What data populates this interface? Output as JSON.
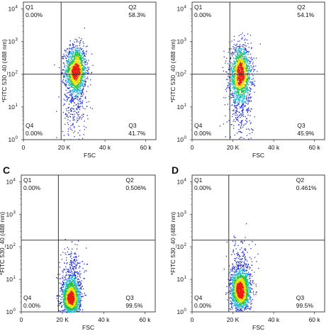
{
  "colors": {
    "density_low": "#1d2bd8",
    "density_mid_low": "#16b8d6",
    "density_mid": "#22c040",
    "density_mid_high": "#e8e000",
    "density_high": "#e81c10",
    "frame": "#444444",
    "gate_line": "#222222"
  },
  "chart_data": [
    {
      "type": "scatter",
      "panel_letter": "",
      "xlabel": "FSC",
      "ylabel": "*FITC 530_40 (488 nm)",
      "x_scale": "linear",
      "y_scale": "log",
      "xlim": [
        0,
        65000
      ],
      "ylim": [
        1,
        16000
      ],
      "x_ticks": [
        0,
        20000,
        40000,
        60000
      ],
      "x_tick_labels": [
        "0",
        "20 K",
        "40 k",
        "60 k"
      ],
      "y_ticks": [
        1,
        10,
        100,
        1000,
        10000
      ],
      "y_tick_labels": [
        "10^0",
        "10^1",
        "10^2",
        "10^3",
        "10^4"
      ],
      "gate_x": 18500,
      "gate_y": 100,
      "quadrants": [
        {
          "name": "Q1",
          "value": "0.00%"
        },
        {
          "name": "Q2",
          "value": "58.3%"
        },
        {
          "name": "Q3",
          "value": "41.7%"
        },
        {
          "name": "Q4",
          "value": "0.00%"
        }
      ],
      "populations": [
        {
          "x_center": 25500,
          "x_sd": 2600,
          "log_y_center": 2.12,
          "log_y_sd": 0.38,
          "count": 1500
        },
        {
          "x_center": 25000,
          "x_sd": 3000,
          "log_y_center": 1.0,
          "log_y_sd": 0.5,
          "count": 220
        }
      ]
    },
    {
      "type": "scatter",
      "panel_letter": "",
      "xlabel": "FSC",
      "ylabel": "*FITC 530_40 (488 nm)",
      "x_scale": "linear",
      "y_scale": "log",
      "xlim": [
        0,
        65000
      ],
      "ylim": [
        1,
        16000
      ],
      "x_ticks": [
        0,
        20000,
        40000,
        60000
      ],
      "x_tick_labels": [
        "0",
        "20 K",
        "40 k",
        "60 k"
      ],
      "y_ticks": [
        1,
        10,
        100,
        1000,
        10000
      ],
      "y_tick_labels": [
        "10^0",
        "10^1",
        "10^2",
        "10^3",
        "10^4"
      ],
      "gate_x": 18500,
      "gate_y": 100,
      "quadrants": [
        {
          "name": "Q1",
          "value": "0.00%"
        },
        {
          "name": "Q2",
          "value": "54.1%"
        },
        {
          "name": "Q3",
          "value": "45.9%"
        },
        {
          "name": "Q4",
          "value": "0.00%"
        }
      ],
      "populations": [
        {
          "x_center": 23500,
          "x_sd": 2700,
          "log_y_center": 2.02,
          "log_y_sd": 0.42,
          "count": 1500
        },
        {
          "x_center": 23500,
          "x_sd": 3000,
          "log_y_center": 0.9,
          "log_y_sd": 0.5,
          "count": 240
        }
      ]
    },
    {
      "type": "scatter",
      "panel_letter": "C",
      "xlabel": "FSC",
      "ylabel": "*FITC 530_40 (488 nm)",
      "x_scale": "linear",
      "y_scale": "log",
      "xlim": [
        0,
        65000
      ],
      "ylim": [
        1,
        16000
      ],
      "x_ticks": [
        0,
        20000,
        40000,
        60000
      ],
      "x_tick_labels": [
        "0",
        "20 K",
        "40 k",
        "60 k"
      ],
      "y_ticks": [
        1,
        10,
        100,
        1000,
        10000
      ],
      "y_tick_labels": [
        "10^0",
        "10^1",
        "10^2",
        "10^3",
        "10^4"
      ],
      "gate_x": 18000,
      "gate_y": 160,
      "quadrants": [
        {
          "name": "Q1",
          "value": "0.00%"
        },
        {
          "name": "Q2",
          "value": "0.506%"
        },
        {
          "name": "Q3",
          "value": "99.5%"
        },
        {
          "name": "Q4",
          "value": "0.00%"
        }
      ],
      "populations": [
        {
          "x_center": 24000,
          "x_sd": 2200,
          "log_y_center": 0.42,
          "log_y_sd": 0.3,
          "count": 1500
        },
        {
          "x_center": 24500,
          "x_sd": 2500,
          "log_y_center": 1.15,
          "log_y_sd": 0.45,
          "count": 320
        }
      ]
    },
    {
      "type": "scatter",
      "panel_letter": "D",
      "xlabel": "FSC",
      "ylabel": "*FITC 530_40 (488 nm)",
      "x_scale": "linear",
      "y_scale": "log",
      "xlim": [
        0,
        65000
      ],
      "ylim": [
        1,
        16000
      ],
      "x_ticks": [
        0,
        20000,
        40000,
        60000
      ],
      "x_tick_labels": [
        "0",
        "20 K",
        "40 k",
        "60 k"
      ],
      "y_ticks": [
        1,
        10,
        100,
        1000,
        10000
      ],
      "y_tick_labels": [
        "10^0",
        "10^1",
        "10^2",
        "10^3",
        "10^4"
      ],
      "gate_x": 18000,
      "gate_y": 160,
      "quadrants": [
        {
          "name": "Q1",
          "value": "0.00%"
        },
        {
          "name": "Q2",
          "value": "0.461%"
        },
        {
          "name": "Q3",
          "value": "99.5%"
        },
        {
          "name": "Q4",
          "value": "0.00%"
        }
      ],
      "populations": [
        {
          "x_center": 23500,
          "x_sd": 2400,
          "log_y_center": 0.65,
          "log_y_sd": 0.3,
          "count": 1500
        },
        {
          "x_center": 24000,
          "x_sd": 2600,
          "log_y_center": 1.3,
          "log_y_sd": 0.45,
          "count": 320
        }
      ]
    }
  ]
}
